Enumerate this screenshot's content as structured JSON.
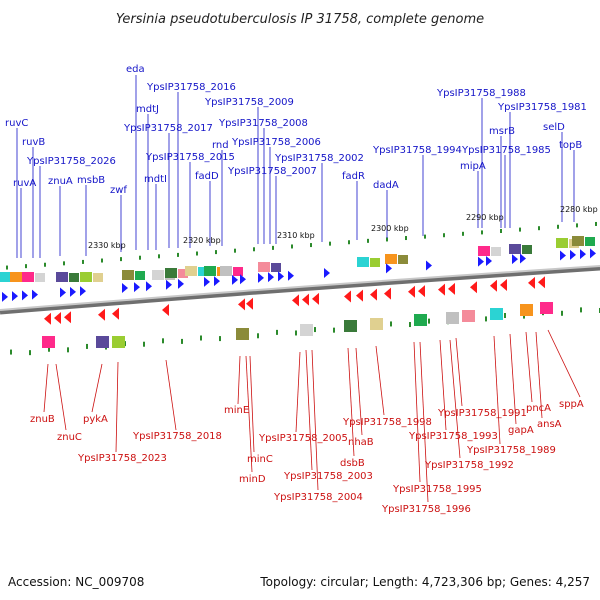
{
  "title": "Yersinia pseudotuberculosis IP 31758, complete genome",
  "footer": {
    "accession": "Accession: NC_009708",
    "summary": "Topology: circular; Length: 4,723,306 bp; Genes: 4,257"
  },
  "colors": {
    "forward_arrow": "#1a1aff",
    "reverse_arrow": "#ff1a1a",
    "label_forward": "#1515c8",
    "label_reverse": "#cc1111",
    "backbone": "#888888",
    "tick": "#2b8a2b"
  },
  "coordinates": [
    "2330 kbp",
    "2320 kbp",
    "2310 kbp",
    "2300 kbp",
    "2290 kbp",
    "2280 kbp"
  ],
  "top_labels": [
    "ruvC",
    "ruvB",
    "YpsIP31758_2026",
    "ruvA",
    "znuA",
    "msbB",
    "zwf",
    "eda",
    "mdtJ",
    "mdtI",
    "YpsIP31758_2016",
    "YpsIP31758_2017",
    "YpsIP31758_2015",
    "fadD",
    "rnd",
    "YpsIP31758_2009",
    "YpsIP31758_2008",
    "YpsIP31758_2006",
    "YpsIP31758_2007",
    "YpsIP31758_2002",
    "fadR",
    "dadA",
    "YpsIP31758_1994",
    "YpsIP31758_1988",
    "YpsIP31758_1981",
    "msrB",
    "YpsIP31758_1985",
    "mipA",
    "selD",
    "topB"
  ],
  "bottom_labels": [
    "znuB",
    "znuC",
    "pykA",
    "YpsIP31758_2023",
    "YpsIP31758_2018",
    "minE",
    "minC",
    "minD",
    "YpsIP31758_2005",
    "YpsIP31758_2003",
    "YpsIP31758_2004",
    "dsbB",
    "nhaB",
    "YpsIP31758_1998",
    "YpsIP31758_1995",
    "YpsIP31758_1996",
    "YpsIP31758_1993",
    "YpsIP31758_1992",
    "YpsIP31758_1991",
    "YpsIP31758_1989",
    "gapA",
    "pncA",
    "ansA",
    "sppA"
  ]
}
